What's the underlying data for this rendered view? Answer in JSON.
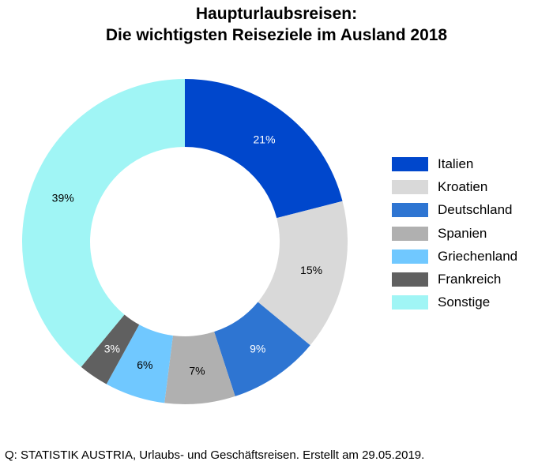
{
  "chart_data": {
    "type": "pie",
    "style": "donut",
    "title_line1": "Haupturlaubsreisen:",
    "title_line2": "Die wichtigsten Reiseziele im Ausland 2018",
    "categories": [
      "Italien",
      "Kroatien",
      "Deutschland",
      "Spanien",
      "Griechenland",
      "Frankreich",
      "Sonstige"
    ],
    "values": [
      21,
      15,
      9,
      7,
      6,
      3,
      39
    ],
    "value_labels": [
      "21%",
      "15%",
      "9%",
      "7%",
      "6%",
      "3%",
      "39%"
    ],
    "colors": [
      "#0047CC",
      "#D9D9D9",
      "#2E75D2",
      "#B0B0B0",
      "#70C8FF",
      "#606060",
      "#A0F5F5"
    ],
    "label_colors": [
      "#ffffff",
      "#000000",
      "#ffffff",
      "#000000",
      "#000000",
      "#ffffff",
      "#000000"
    ],
    "legend_position": "right",
    "start": "12 o'clock, clockwise"
  },
  "source": "Q: STATISTIK AUSTRIA, Urlaubs- und Geschäftsreisen. Erstellt am 29.05.2019."
}
